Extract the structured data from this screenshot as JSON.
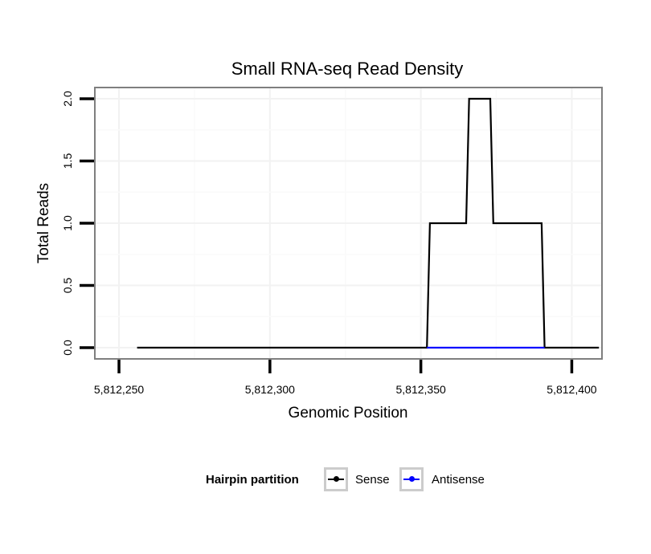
{
  "chart_data": {
    "type": "line",
    "title": "Small RNA-seq Read Density",
    "xlabel": "Genomic Position",
    "ylabel": "Total Reads",
    "xlim": [
      5812242,
      5812410
    ],
    "ylim": [
      -0.09,
      2.09
    ],
    "x_ticks": [
      5812250,
      5812300,
      5812350,
      5812400
    ],
    "x_tick_labels": [
      "5,812,250",
      "5,812,300",
      "5,812,350",
      "5,812,400"
    ],
    "y_ticks": [
      0,
      0.5,
      1,
      1.5,
      2
    ],
    "y_tick_labels": [
      "0.0",
      "0.5",
      "1.0",
      "1.5",
      "2.0"
    ],
    "grid": true,
    "legend_position": "bottom",
    "legend_title": "Hairpin partition",
    "series": [
      {
        "name": "Sense",
        "color": "#000000",
        "x": [
          5812256,
          5812352,
          5812353,
          5812365,
          5812366,
          5812373,
          5812374,
          5812390,
          5812391,
          5812409
        ],
        "y": [
          0,
          0,
          1,
          1,
          2,
          2,
          1,
          1,
          0,
          0
        ]
      },
      {
        "name": "Antisense",
        "color": "#0000ff",
        "x": [
          5812352,
          5812391
        ],
        "y": [
          0,
          0
        ]
      }
    ]
  }
}
